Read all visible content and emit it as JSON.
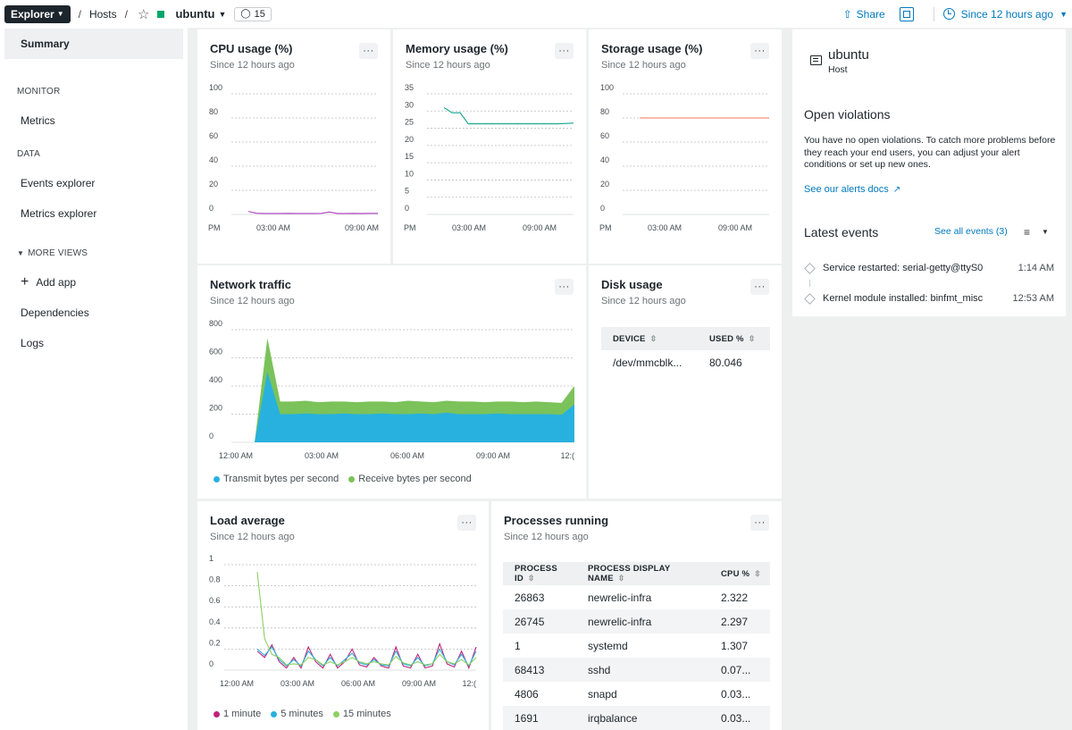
{
  "topbar": {
    "explorer_label": "Explorer",
    "crumb_hosts": "Hosts",
    "entity_name": "ubuntu",
    "tag_count": "15",
    "share_label": "Share",
    "time_range": "Since 12 hours ago",
    "status_color": "#01a76a"
  },
  "sidebar": {
    "summary": "Summary",
    "monitor_section": "MONITOR",
    "metrics": "Metrics",
    "data_section": "DATA",
    "events_explorer": "Events explorer",
    "metrics_explorer": "Metrics explorer",
    "more_views": "MORE VIEWS",
    "add_app": "Add app",
    "dependencies": "Dependencies",
    "logs": "Logs"
  },
  "cards": {
    "cpu": {
      "title": "CPU usage (%)",
      "subtitle": "Since 12 hours ago"
    },
    "memory": {
      "title": "Memory usage (%)",
      "subtitle": "Since 12 hours ago"
    },
    "storage": {
      "title": "Storage usage (%)",
      "subtitle": "Since 12 hours ago"
    },
    "network": {
      "title": "Network traffic",
      "subtitle": "Since 12 hours ago",
      "legend_transmit": "Transmit bytes per second",
      "legend_receive": "Receive bytes per second"
    },
    "disk": {
      "title": "Disk usage",
      "subtitle": "Since 12 hours ago"
    },
    "load": {
      "title": "Load average",
      "subtitle": "Since 12 hours ago",
      "legend_1": "1 minute",
      "legend_5": "5 minutes",
      "legend_15": "15 minutes"
    },
    "processes": {
      "title": "Processes running",
      "subtitle": "Since 12 hours ago"
    }
  },
  "disk_table": {
    "headers": [
      "DEVICE",
      "USED %"
    ],
    "rows": [
      [
        "/dev/mmcblk...",
        "80.046"
      ]
    ]
  },
  "process_table": {
    "headers": [
      "PROCESS ID",
      "PROCESS DISPLAY NAME",
      "CPU %"
    ],
    "rows": [
      [
        "26863",
        "newrelic-infra",
        "2.322"
      ],
      [
        "26745",
        "newrelic-infra",
        "2.297"
      ],
      [
        "1",
        "systemd",
        "1.307"
      ],
      [
        "68413",
        "sshd",
        "0.07..."
      ],
      [
        "4806",
        "snapd",
        "0.03..."
      ],
      [
        "1691",
        "irqbalance",
        "0.03..."
      ]
    ]
  },
  "right_panel": {
    "host_name": "ubuntu",
    "host_type": "Host",
    "violations_title": "Open violations",
    "violations_text": "You have no open violations. To catch more problems before they reach your end users, you can adjust your alert conditions or set up new ones.",
    "alerts_link": "See our alerts docs",
    "events_title": "Latest events",
    "see_all": "See all events (3)",
    "events": [
      {
        "label": "Service restarted: serial-getty@ttyS0",
        "time": "1:14 AM"
      },
      {
        "label": "Kernel module installed: binfmt_misc",
        "time": "12:53 AM"
      }
    ]
  },
  "chart_data": [
    {
      "type": "line",
      "title": "CPU usage (%)",
      "ylim": [
        0,
        100
      ],
      "yticks": [
        "100",
        "80",
        "60",
        "40",
        "20",
        "0"
      ],
      "xticks": [
        "PM",
        "03:00 AM",
        "09:00 AM"
      ],
      "series": [
        {
          "color": "#b040c0",
          "values": [
            2.5,
            1.0,
            0.8,
            0.8,
            0.8,
            0.9,
            0.8,
            0.8,
            0.8,
            0.9,
            2.0,
            0.8,
            0.8,
            0.9,
            0.8,
            0.9,
            0.9
          ]
        }
      ]
    },
    {
      "type": "line",
      "title": "Memory usage (%)",
      "ylim": [
        0,
        35
      ],
      "yticks": [
        "35",
        "30",
        "25",
        "20",
        "15",
        "10",
        "5",
        "0"
      ],
      "xticks": [
        "PM",
        "03:00 AM",
        "09:00 AM"
      ],
      "series": [
        {
          "color": "#11a58c",
          "values": [
            31,
            29.5,
            29.5,
            26.3,
            26.3,
            26.3,
            26.3,
            26.3,
            26.3,
            26.3,
            26.3,
            26.3,
            26.3,
            26.3,
            26.3,
            26.4,
            26.5
          ]
        }
      ]
    },
    {
      "type": "line",
      "title": "Storage usage (%)",
      "ylim": [
        0,
        100
      ],
      "yticks": [
        "100",
        "80",
        "60",
        "40",
        "20",
        "0"
      ],
      "xticks": [
        "PM",
        "03:00 AM",
        "09:00 AM"
      ],
      "series": [
        {
          "color": "#f07060",
          "values": [
            80,
            80,
            80,
            80,
            80,
            80,
            80
          ]
        }
      ]
    },
    {
      "type": "area",
      "title": "Network traffic",
      "ylim": [
        0,
        800
      ],
      "yticks": [
        "800",
        "600",
        "400",
        "200",
        "0"
      ],
      "xticks": [
        "12:00 AM",
        "03:00 AM",
        "06:00 AM",
        "09:00 AM",
        "12:("
      ],
      "series": [
        {
          "name": "Transmit bytes per second",
          "color": "#28b1de",
          "values": [
            0,
            500,
            200,
            200,
            205,
            200,
            200,
            205,
            200,
            200,
            205,
            200,
            200,
            205,
            200,
            210,
            200,
            200,
            200,
            205,
            200,
            200,
            200,
            200,
            195,
            270
          ]
        },
        {
          "name": "Receive bytes per second",
          "color": "#7bc25a",
          "values": [
            0,
            740,
            290,
            290,
            295,
            285,
            290,
            290,
            285,
            290,
            290,
            285,
            295,
            290,
            285,
            295,
            290,
            290,
            285,
            290,
            290,
            285,
            290,
            285,
            280,
            400
          ]
        }
      ]
    },
    {
      "type": "line",
      "title": "Load average",
      "ylim": [
        0,
        1
      ],
      "yticks": [
        "1",
        "0.8",
        "0.6",
        "0.4",
        "0.2",
        "0"
      ],
      "xticks": [
        "12:00 AM",
        "03:00 AM",
        "06:00 AM",
        "09:00 AM",
        "12:("
      ],
      "series": [
        {
          "name": "1 minute",
          "color": "#c0237a",
          "values": [
            0.18,
            0.12,
            0.24,
            0.08,
            0.02,
            0.12,
            0.02,
            0.22,
            0.08,
            0.02,
            0.15,
            0.02,
            0.08,
            0.2,
            0.05,
            0.03,
            0.12,
            0.04,
            0.02,
            0.22,
            0.04,
            0.02,
            0.15,
            0.02,
            0.04,
            0.25,
            0.06,
            0.03,
            0.18,
            0.02,
            0.22
          ]
        },
        {
          "name": "5 minutes",
          "color": "#28b1de",
          "values": [
            0.2,
            0.14,
            0.22,
            0.1,
            0.04,
            0.1,
            0.04,
            0.18,
            0.1,
            0.04,
            0.12,
            0.04,
            0.1,
            0.16,
            0.07,
            0.05,
            0.1,
            0.05,
            0.04,
            0.18,
            0.06,
            0.04,
            0.12,
            0.04,
            0.06,
            0.2,
            0.08,
            0.05,
            0.15,
            0.04,
            0.18
          ]
        },
        {
          "name": "15 minutes",
          "color": "#8cd161",
          "values": [
            0.93,
            0.3,
            0.15,
            0.12,
            0.05,
            0.06,
            0.05,
            0.12,
            0.1,
            0.05,
            0.08,
            0.05,
            0.08,
            0.12,
            0.08,
            0.06,
            0.08,
            0.06,
            0.05,
            0.13,
            0.07,
            0.05,
            0.08,
            0.05,
            0.06,
            0.15,
            0.08,
            0.06,
            0.1,
            0.05,
            0.12
          ]
        }
      ]
    }
  ]
}
